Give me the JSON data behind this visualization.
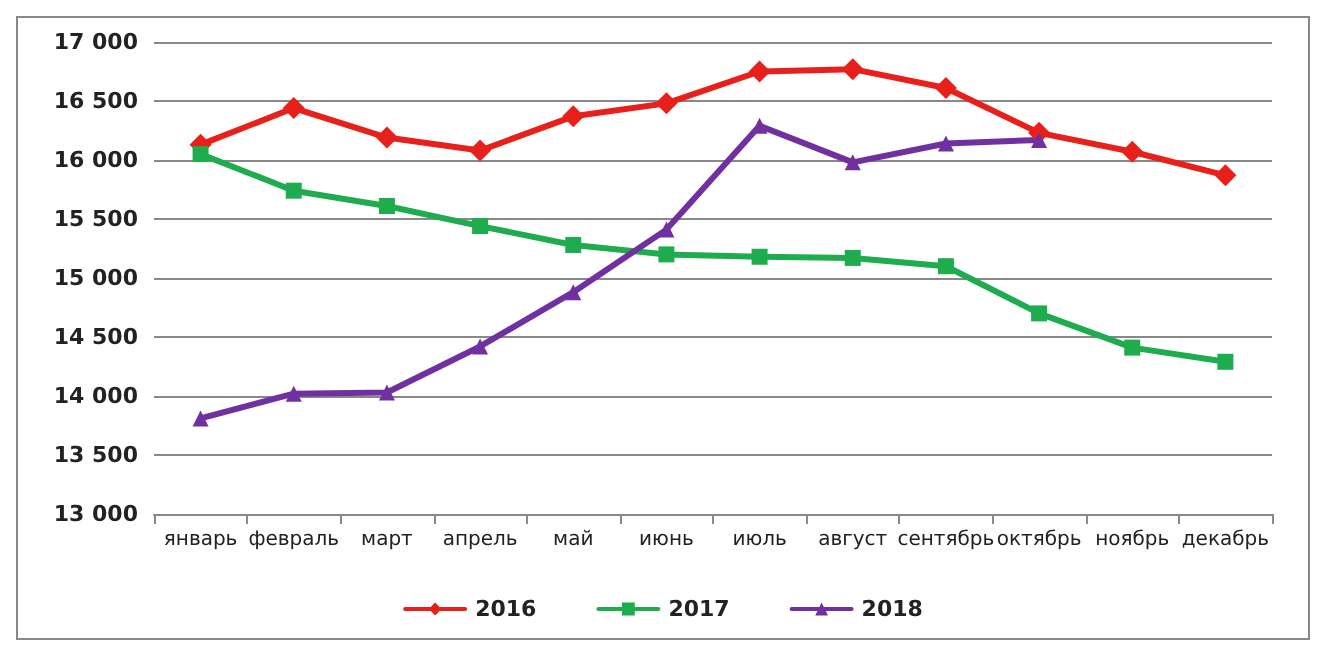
{
  "chart_data": {
    "type": "line",
    "categories": [
      "январь",
      "февраль",
      "март",
      "апрель",
      "май",
      "июнь",
      "июль",
      "август",
      "сентябрь",
      "октябрь",
      "ноябрь",
      "декабрь"
    ],
    "series": [
      {
        "name": "2016",
        "color": "#e8201c",
        "marker": "diamond",
        "values": [
          16130,
          16440,
          16190,
          16080,
          16370,
          16480,
          16750,
          16770,
          16610,
          16230,
          16070,
          15870
        ]
      },
      {
        "name": "2017",
        "color": "#1eac4f",
        "marker": "square",
        "values": [
          16050,
          15740,
          15610,
          15440,
          15280,
          15200,
          15180,
          15170,
          15100,
          14700,
          14410,
          14290
        ]
      },
      {
        "name": "2018",
        "color": "#7030a0",
        "marker": "triangle",
        "values": [
          13810,
          14020,
          14030,
          14420,
          14880,
          15410,
          16290,
          15980,
          16140,
          16170,
          null,
          null
        ]
      }
    ],
    "ylim": [
      13000,
      17000
    ],
    "yticks": [
      {
        "value": 13000,
        "label": "13 000"
      },
      {
        "value": 13500,
        "label": "13 500"
      },
      {
        "value": 14000,
        "label": "14 000"
      },
      {
        "value": 14500,
        "label": "14 500"
      },
      {
        "value": 15000,
        "label": "15 000"
      },
      {
        "value": 15500,
        "label": "15 500"
      },
      {
        "value": 16000,
        "label": "16 000"
      },
      {
        "value": 16500,
        "label": "16 500"
      },
      {
        "value": 17000,
        "label": "17 000"
      }
    ],
    "grid": "y",
    "legend": "bottom",
    "line_style": "solid"
  }
}
